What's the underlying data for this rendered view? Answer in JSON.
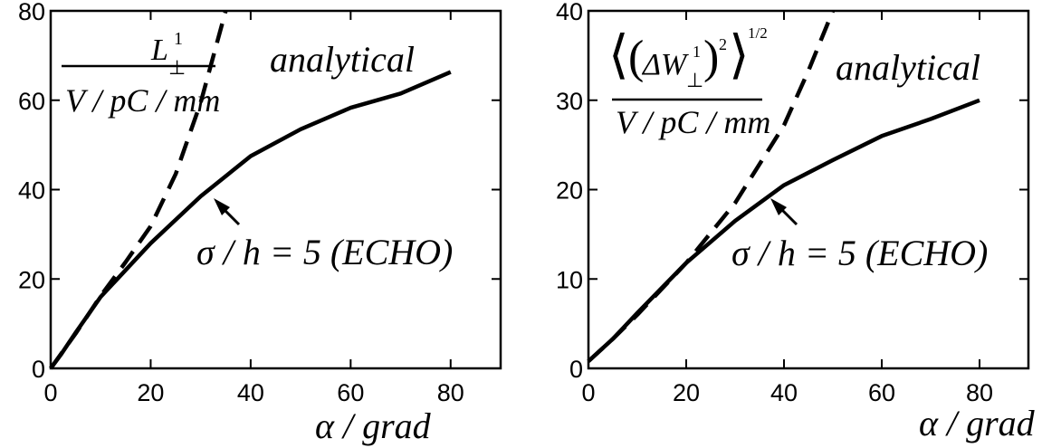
{
  "chart_data": [
    {
      "type": "line",
      "xlim": [
        0,
        90
      ],
      "ylim": [
        0,
        80
      ],
      "x_ticks": [
        "0",
        "20",
        "40",
        "60",
        "80"
      ],
      "y_ticks": [
        "0",
        "20",
        "40",
        "60",
        "80"
      ],
      "xlabel": "α / grad",
      "ylabel_numerator": "L",
      "ylabel_superscript": "1",
      "ylabel_subscript": "⊥",
      "ylabel_denominator": "V / pC / mm",
      "series": [
        {
          "name": "σ / h = 5 (ECHO)",
          "style": "solid",
          "x": [
            0,
            2,
            5,
            10,
            20,
            30,
            40,
            50,
            60,
            70,
            80
          ],
          "y": [
            0,
            3,
            8,
            16,
            28,
            38.5,
            47.5,
            53.5,
            58.3,
            61.5,
            66.3
          ]
        },
        {
          "name": "analytical",
          "style": "dashed",
          "x": [
            0,
            5,
            10,
            15,
            20,
            25,
            30,
            35
          ],
          "y": [
            0,
            7.8,
            16.2,
            23.8,
            31.8,
            43.5,
            59.5,
            80
          ]
        }
      ],
      "annotations": [
        "analytical",
        "σ / h = 5 (ECHO)"
      ]
    },
    {
      "type": "line",
      "xlim": [
        0,
        90
      ],
      "ylim": [
        0,
        40
      ],
      "x_ticks": [
        "0",
        "20",
        "40",
        "60",
        "80"
      ],
      "y_ticks": [
        "0",
        "10",
        "20",
        "30",
        "40"
      ],
      "xlabel": "α / grad",
      "ylabel_numerator": "ΔW",
      "ylabel_superscript": "1",
      "ylabel_subscript": "⊥",
      "ylabel_power": "2",
      "ylabel_outer_power": "1/2",
      "ylabel_denominator": "V / pC / mm",
      "series": [
        {
          "name": "σ / h = 5 (ECHO)",
          "style": "solid",
          "x": [
            0,
            5,
            10,
            20,
            30,
            40,
            50,
            60,
            70,
            80
          ],
          "y": [
            0.8,
            3.3,
            6.2,
            11.8,
            16.5,
            20.5,
            23.3,
            26,
            27.9,
            30
          ]
        },
        {
          "name": "analytical",
          "style": "dashed",
          "x": [
            0,
            5,
            10,
            20,
            30,
            40,
            45,
            50
          ],
          "y": [
            0.8,
            3.3,
            6,
            11.8,
            18.5,
            27.2,
            33.3,
            40
          ]
        }
      ],
      "annotations": [
        "analytical",
        "σ / h = 5 (ECHO)"
      ]
    }
  ]
}
